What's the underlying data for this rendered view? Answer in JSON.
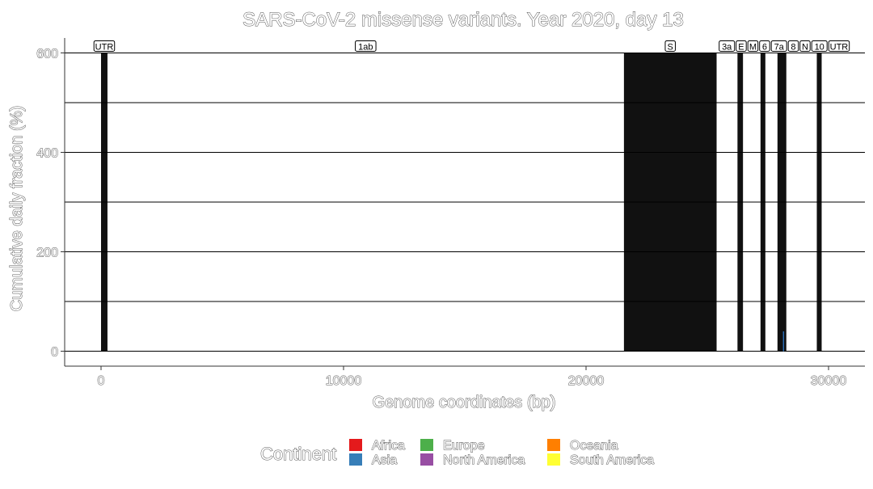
{
  "chart_data": {
    "type": "bar",
    "title": "SARS-CoV-2 missense variants. Year 2020, day 13",
    "xlabel": "Genome coordinates (bp)",
    "ylabel": "Cumulative daily fraction (%)",
    "xlim": [
      -1500,
      31500
    ],
    "ylim": [
      -30,
      630
    ],
    "x_ticks": [
      0,
      10000,
      20000,
      30000
    ],
    "x_tick_labels": [
      "0",
      "10000",
      "20000",
      "30000"
    ],
    "y_ticks": [
      0,
      200,
      400,
      600
    ],
    "y_tick_labels": [
      "0",
      "200",
      "400",
      "600"
    ],
    "y_gridlines": [
      0,
      100,
      200,
      300,
      400,
      500,
      600
    ],
    "grid": true,
    "gene_regions": [
      {
        "label": "UTR",
        "start": 0,
        "end": 265,
        "highlighted": true
      },
      {
        "label": "1ab",
        "start": 266,
        "end": 21555,
        "highlighted": false
      },
      {
        "label": "S",
        "start": 21563,
        "end": 25384,
        "highlighted": true
      },
      {
        "label": "3a",
        "start": 25393,
        "end": 26220,
        "highlighted": false
      },
      {
        "label": "E",
        "start": 26245,
        "end": 26472,
        "highlighted": true
      },
      {
        "label": "M",
        "start": 26523,
        "end": 27191,
        "highlighted": false
      },
      {
        "label": "6",
        "start": 27202,
        "end": 27387,
        "highlighted": true
      },
      {
        "label": "7a",
        "start": 27394,
        "end": 27887,
        "highlighted": false
      },
      {
        "label": "8",
        "start": 27894,
        "end": 28259,
        "highlighted": true
      },
      {
        "label": "N",
        "start": 28274,
        "end": 29533,
        "highlighted": false
      },
      {
        "label": "10",
        "start": 29558,
        "end": 29674,
        "highlighted": true
      },
      {
        "label": "UTR",
        "start": 29675,
        "end": 29903,
        "highlighted": false
      }
    ],
    "series": [
      {
        "name": "Asia",
        "color": "#2a6db5",
        "points": [
          {
            "x": 28144,
            "y": 40
          }
        ]
      }
    ],
    "legend": {
      "title": "Continent",
      "position": "bottom",
      "items": [
        {
          "name": "Africa",
          "color": "#e41a1c"
        },
        {
          "name": "Asia",
          "color": "#377eb8"
        },
        {
          "name": "Europe",
          "color": "#4daf4a"
        },
        {
          "name": "North America",
          "color": "#984ea3"
        },
        {
          "name": "Oceania",
          "color": "#ff7f00"
        },
        {
          "name": "South America",
          "color": "#ffff33"
        }
      ]
    },
    "colors": {
      "gene_fill": "#111111",
      "grid": "#000000",
      "axis": "#333333"
    }
  }
}
